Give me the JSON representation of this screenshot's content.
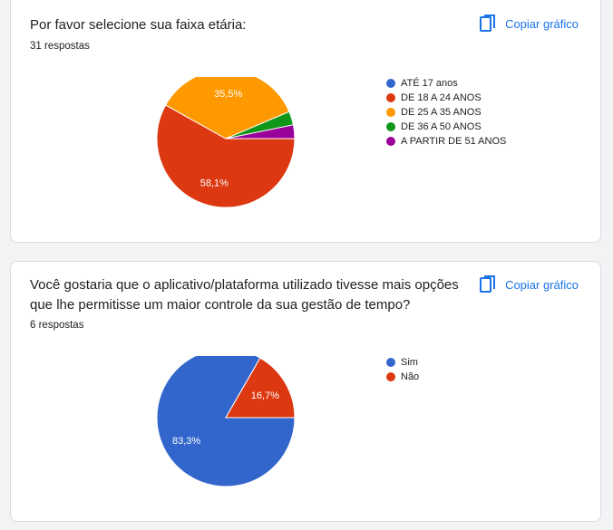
{
  "copy_label": "Copiar gráfico",
  "icons": {
    "copy": "copy-icon"
  },
  "cards": [
    {
      "title": "Por favor selecione sua faixa etária:",
      "count": "31 respostas"
    },
    {
      "title": "Você gostaria que o aplicativo/plataforma utilizado tivesse mais opções que lhe permitisse um maior controle da sua gestão de tempo?",
      "count": "6 respostas"
    }
  ],
  "chart_data": [
    {
      "type": "pie",
      "legend_position": "right",
      "series": [
        {
          "label": "ATÉ 17 anos",
          "value": 0,
          "color": "#3366cc",
          "data_label": ""
        },
        {
          "label": "DE 18 A 24 ANOS",
          "value": 58.1,
          "color": "#dc3912",
          "data_label": "58,1%"
        },
        {
          "label": "DE 25 A 35 ANOS",
          "value": 35.5,
          "color": "#ff9900",
          "data_label": "35,5%"
        },
        {
          "label": "DE 36 A 50 ANOS",
          "value": 3.2,
          "color": "#109618",
          "data_label": ""
        },
        {
          "label": "A PARTIR DE 51 ANOS",
          "value": 3.2,
          "color": "#990099",
          "data_label": ""
        }
      ]
    },
    {
      "type": "pie",
      "legend_position": "right",
      "series": [
        {
          "label": "Sim",
          "value": 83.3,
          "color": "#3366cc",
          "data_label": "83,3%"
        },
        {
          "label": "Não",
          "value": 16.7,
          "color": "#dc3912",
          "data_label": "16,7%"
        }
      ]
    }
  ]
}
